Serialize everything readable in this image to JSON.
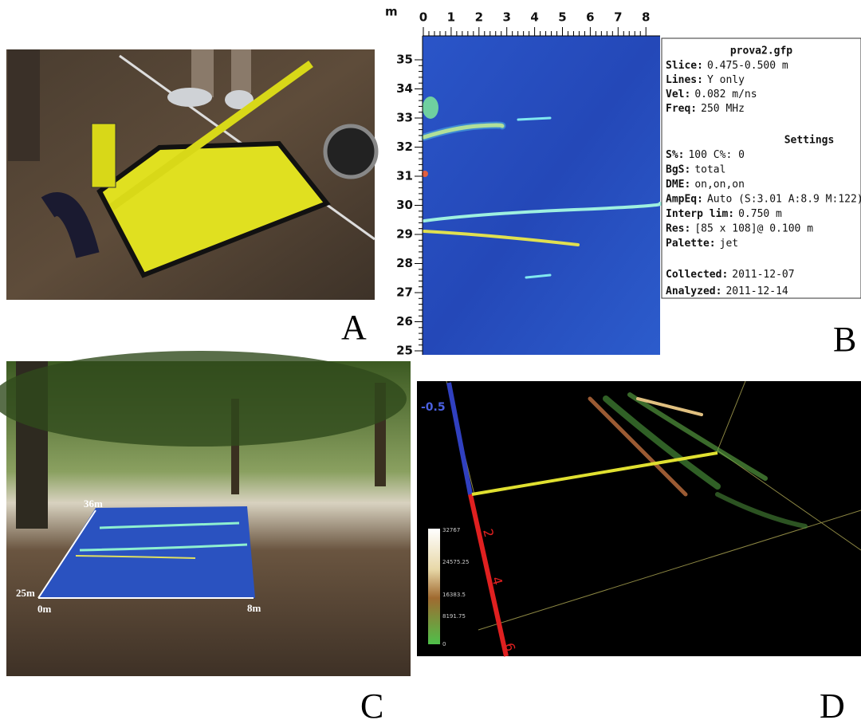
{
  "panels": {
    "a": {
      "label": "A"
    },
    "b": {
      "label": "B",
      "axis_unit": "m",
      "x_ticks": [
        "0",
        "1",
        "2",
        "3",
        "4",
        "5",
        "6",
        "7",
        "8"
      ],
      "y_ticks": [
        "35",
        "34",
        "33",
        "32",
        "31",
        "30",
        "29",
        "28",
        "27",
        "26",
        "25"
      ],
      "info": {
        "title": "prova2.gfp",
        "lines": [
          {
            "key": "Slice:",
            "text": "0.475-0.500 m"
          },
          {
            "key": "Lines:",
            "text": "Y only"
          },
          {
            "key": "Vel:",
            "text": "0.082 m/ns"
          },
          {
            "key": "Freq:",
            "text": "250 MHz"
          }
        ],
        "settings_title": "Settings",
        "settings": [
          {
            "key": "S%:",
            "text": "100  C%: 0"
          },
          {
            "key": "BgS:",
            "text": "total"
          },
          {
            "key": "DME:",
            "text": "on,on,on"
          },
          {
            "key": "AmpEq:",
            "text": "Auto (S:3.01 A:8.9 M:122)"
          },
          {
            "key": "Interp lim:",
            "text": "0.750 m"
          },
          {
            "key": "Res:",
            "text": "[85 x 108]@ 0.100 m"
          },
          {
            "key": "Palette:",
            "text": "jet"
          }
        ],
        "dates": [
          {
            "key": "Collected:",
            "text": "2011-12-07"
          },
          {
            "key": "Analyzed:",
            "text": "2011-12-14"
          }
        ]
      }
    },
    "c": {
      "label": "C",
      "corner_labels": [
        "36m",
        "25m",
        "0m",
        "8m"
      ]
    },
    "d": {
      "label": "D",
      "depth_top": "-0.5",
      "colorbar": [
        "32767",
        "24575.25",
        "16383.5",
        "8191.75",
        "0"
      ],
      "depth_ticks": [
        "2",
        "4",
        "6"
      ]
    }
  }
}
